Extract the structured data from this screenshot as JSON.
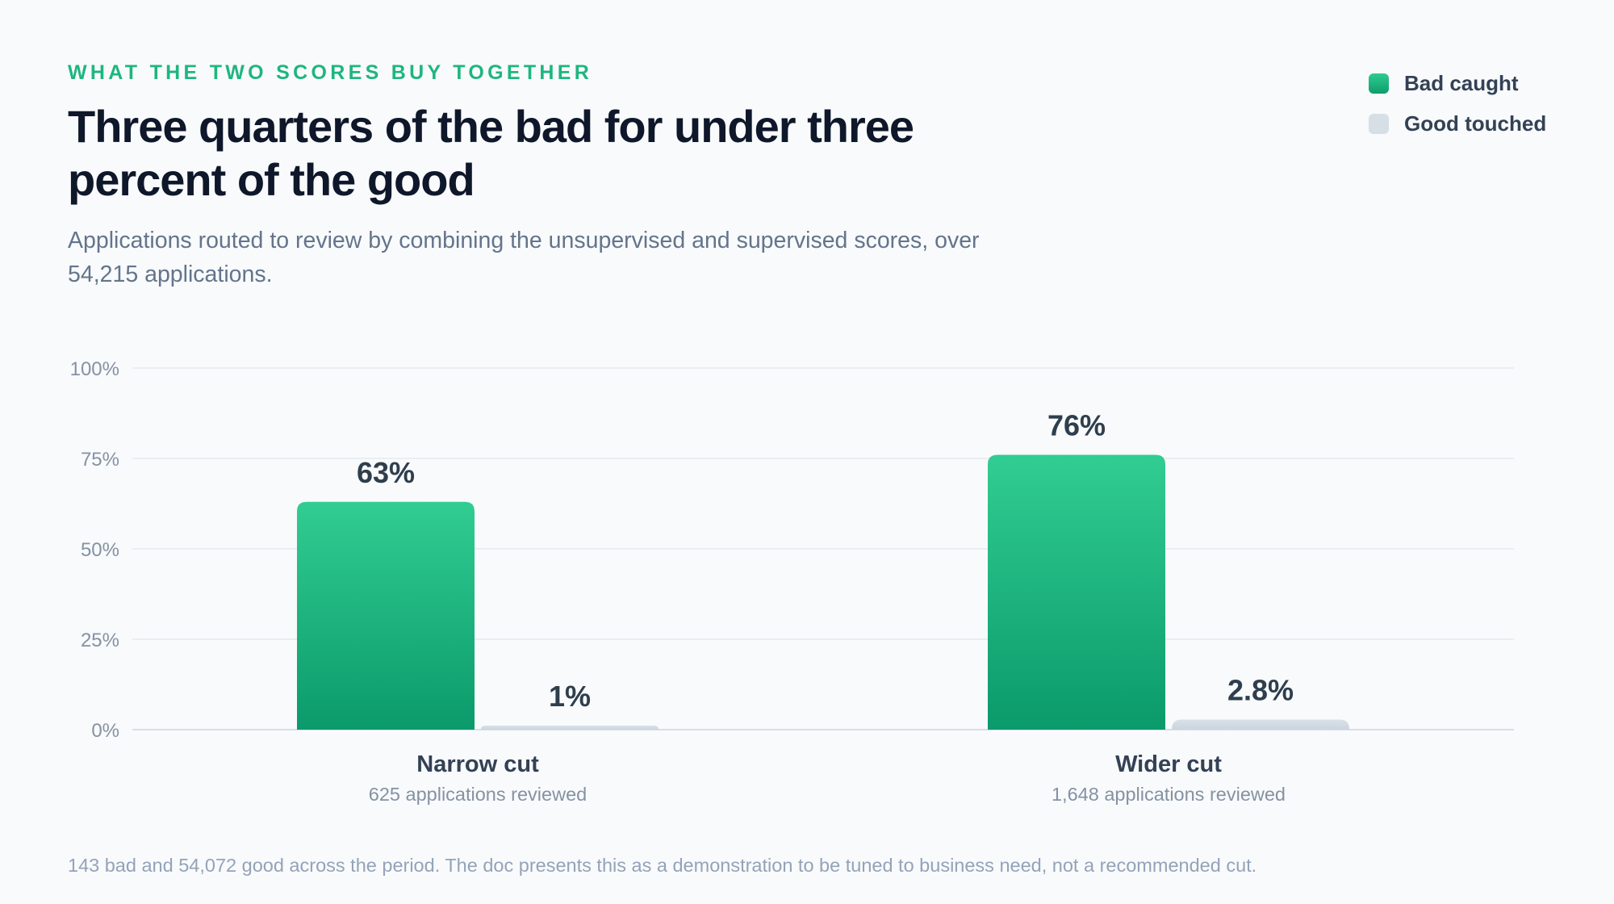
{
  "eyebrow": "What the two scores buy together",
  "title": "Three quarters of the bad for under three percent of the good",
  "subtitle": "Applications routed to review by combining the unsupervised and supervised scores, over 54,215 applications.",
  "footnote": "143 bad and 54,072 good across the period. The doc presents this as a demonstration to be tuned to business need, not a recommended cut.",
  "legend": [
    {
      "label": "Bad caught",
      "color": "#1fbf87"
    },
    {
      "label": "Good touched",
      "color": "#cfd8e1"
    }
  ],
  "chart_data": {
    "type": "bar",
    "categories": [
      "Narrow cut",
      "Wider cut"
    ],
    "category_sublabels": [
      "625 applications reviewed",
      "1,648 applications reviewed"
    ],
    "series": [
      {
        "name": "Bad caught",
        "values": [
          63,
          76
        ],
        "labels": [
          "63%",
          "76%"
        ],
        "color": "#1fbf87"
      },
      {
        "name": "Good touched",
        "values": [
          1,
          2.8
        ],
        "labels": [
          "1%",
          "2.8%"
        ],
        "color": "#cfd8e1"
      }
    ],
    "yticks": [
      "0%",
      "25%",
      "50%",
      "75%",
      "100%"
    ],
    "ylim": [
      0,
      100
    ],
    "grid": true,
    "legend_position": "top-right"
  }
}
